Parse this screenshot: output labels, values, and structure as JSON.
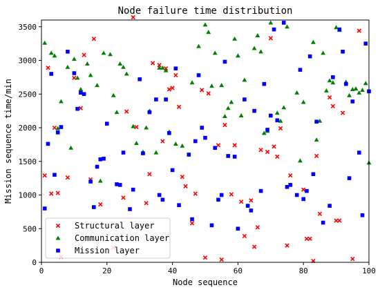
{
  "chart_data": {
    "type": "scatter",
    "title": "Node failure time distribution",
    "xlabel": "Node sequence",
    "ylabel": "Mission sequence time/min",
    "xlim": [
      0,
      100
    ],
    "ylim": [
      0,
      3600
    ],
    "xticks": [
      0,
      20,
      40,
      60,
      80,
      100
    ],
    "yticks": [
      0,
      500,
      1000,
      1500,
      2000,
      2500,
      3000,
      3500
    ],
    "grid": false,
    "legend_position": "lower-left",
    "series": [
      {
        "name": "Structural layer",
        "marker": "x",
        "color": "#ff0000",
        "points": [
          [
            1,
            1290
          ],
          [
            2,
            2890
          ],
          [
            3,
            1020
          ],
          [
            4,
            2000
          ],
          [
            5,
            1030
          ],
          [
            6,
            80
          ],
          [
            8,
            1260
          ],
          [
            10,
            2740
          ],
          [
            12,
            2290
          ],
          [
            13,
            3080
          ],
          [
            15,
            1230
          ],
          [
            16,
            3320
          ],
          [
            18,
            860
          ],
          [
            22,
            220
          ],
          [
            25,
            960
          ],
          [
            26,
            2240
          ],
          [
            28,
            3640
          ],
          [
            29,
            2010
          ],
          [
            32,
            880
          ],
          [
            33,
            1310
          ],
          [
            34,
            2960
          ],
          [
            36,
            2930
          ],
          [
            37,
            1800
          ],
          [
            38,
            2880
          ],
          [
            39,
            2570
          ],
          [
            40,
            2590
          ],
          [
            41,
            2780
          ],
          [
            42,
            2310
          ],
          [
            43,
            1270
          ],
          [
            44,
            1130
          ],
          [
            46,
            580
          ],
          [
            47,
            1020
          ],
          [
            49,
            2560
          ],
          [
            50,
            70
          ],
          [
            51,
            2510
          ],
          [
            54,
            1740
          ],
          [
            55,
            40
          ],
          [
            56,
            2040
          ],
          [
            58,
            1010
          ],
          [
            59,
            1740
          ],
          [
            61,
            900
          ],
          [
            62,
            390
          ],
          [
            64,
            920
          ],
          [
            65,
            230
          ],
          [
            66,
            520
          ],
          [
            67,
            1670
          ],
          [
            69,
            1640
          ],
          [
            70,
            3330
          ],
          [
            71,
            1720
          ],
          [
            72,
            1570
          ],
          [
            73,
            1990
          ],
          [
            75,
            250
          ],
          [
            76,
            1290
          ],
          [
            80,
            1080
          ],
          [
            81,
            350
          ],
          [
            82,
            350
          ],
          [
            83,
            20
          ],
          [
            84,
            1580
          ],
          [
            85,
            720
          ],
          [
            88,
            2450
          ],
          [
            89,
            2320
          ],
          [
            90,
            620
          ],
          [
            91,
            620
          ],
          [
            92,
            2220
          ],
          [
            95,
            50
          ],
          [
            97,
            3440
          ]
        ]
      },
      {
        "name": "Communication layer",
        "marker": "triangle",
        "color": "#008000",
        "points": [
          [
            1,
            3260
          ],
          [
            3,
            3110
          ],
          [
            4,
            3070
          ],
          [
            5,
            1990
          ],
          [
            6,
            2390
          ],
          [
            8,
            2900
          ],
          [
            9,
            1700
          ],
          [
            10,
            3020
          ],
          [
            11,
            2740
          ],
          [
            12,
            2570
          ],
          [
            14,
            2950
          ],
          [
            15,
            2780
          ],
          [
            17,
            2630
          ],
          [
            18,
            1210
          ],
          [
            19,
            3110
          ],
          [
            21,
            3090
          ],
          [
            22,
            2480
          ],
          [
            23,
            2230
          ],
          [
            24,
            2950
          ],
          [
            25,
            2900
          ],
          [
            26,
            2800
          ],
          [
            28,
            2020
          ],
          [
            29,
            1770
          ],
          [
            31,
            1640
          ],
          [
            32,
            2000
          ],
          [
            33,
            2250
          ],
          [
            35,
            1630
          ],
          [
            36,
            2890
          ],
          [
            37,
            2890
          ],
          [
            38,
            2850
          ],
          [
            39,
            1940
          ],
          [
            41,
            1760
          ],
          [
            43,
            1730
          ],
          [
            46,
            2670
          ],
          [
            48,
            3210
          ],
          [
            50,
            3530
          ],
          [
            51,
            3420
          ],
          [
            52,
            2620
          ],
          [
            53,
            3110
          ],
          [
            55,
            2630
          ],
          [
            56,
            2170
          ],
          [
            57,
            2290
          ],
          [
            58,
            2380
          ],
          [
            59,
            3320
          ],
          [
            60,
            3070
          ],
          [
            61,
            2180
          ],
          [
            62,
            2710
          ],
          [
            65,
            3180
          ],
          [
            66,
            3370
          ],
          [
            67,
            3130
          ],
          [
            68,
            1920
          ],
          [
            69,
            1950
          ],
          [
            70,
            3560
          ],
          [
            72,
            2220
          ],
          [
            73,
            2100
          ],
          [
            74,
            2300
          ],
          [
            75,
            3500
          ],
          [
            78,
            2520
          ],
          [
            79,
            1510
          ],
          [
            80,
            2380
          ],
          [
            83,
            3270
          ],
          [
            84,
            1820
          ],
          [
            85,
            2100
          ],
          [
            86,
            3110
          ],
          [
            87,
            2550
          ],
          [
            88,
            2700
          ],
          [
            89,
            2670
          ],
          [
            90,
            3490
          ],
          [
            91,
            3450
          ],
          [
            93,
            2680
          ],
          [
            94,
            2480
          ],
          [
            95,
            2570
          ],
          [
            96,
            2580
          ],
          [
            97,
            2520
          ],
          [
            98,
            2560
          ],
          [
            99,
            2660
          ],
          [
            100,
            1480
          ]
        ]
      },
      {
        "name": "Mission layer",
        "marker": "square",
        "color": "#0000ff",
        "points": [
          [
            1,
            800
          ],
          [
            2,
            1760
          ],
          [
            3,
            2800
          ],
          [
            4,
            1300
          ],
          [
            5,
            1930
          ],
          [
            6,
            2010
          ],
          [
            8,
            3130
          ],
          [
            10,
            2810
          ],
          [
            11,
            2280
          ],
          [
            12,
            2520
          ],
          [
            13,
            2500
          ],
          [
            15,
            1200
          ],
          [
            16,
            820
          ],
          [
            17,
            1420
          ],
          [
            18,
            1530
          ],
          [
            19,
            1540
          ],
          [
            20,
            2060
          ],
          [
            23,
            1160
          ],
          [
            24,
            1150
          ],
          [
            25,
            1630
          ],
          [
            27,
            790
          ],
          [
            28,
            1080
          ],
          [
            30,
            2720
          ],
          [
            31,
            1620
          ],
          [
            33,
            2230
          ],
          [
            35,
            2420
          ],
          [
            36,
            1000
          ],
          [
            37,
            930
          ],
          [
            38,
            2420
          ],
          [
            39,
            1920
          ],
          [
            40,
            1370
          ],
          [
            41,
            2880
          ],
          [
            42,
            850
          ],
          [
            45,
            1600
          ],
          [
            46,
            640
          ],
          [
            47,
            1800
          ],
          [
            48,
            2780
          ],
          [
            49,
            2000
          ],
          [
            50,
            1850
          ],
          [
            52,
            550
          ],
          [
            53,
            1700
          ],
          [
            54,
            930
          ],
          [
            55,
            1000
          ],
          [
            56,
            2980
          ],
          [
            57,
            1580
          ],
          [
            59,
            1570
          ],
          [
            60,
            500
          ],
          [
            62,
            2420
          ],
          [
            63,
            840
          ],
          [
            64,
            770
          ],
          [
            65,
            2250
          ],
          [
            67,
            1060
          ],
          [
            68,
            2650
          ],
          [
            69,
            1970
          ],
          [
            70,
            2180
          ],
          [
            71,
            3460
          ],
          [
            72,
            2110
          ],
          [
            74,
            3560
          ],
          [
            75,
            1120
          ],
          [
            76,
            1150
          ],
          [
            78,
            1000
          ],
          [
            79,
            2860
          ],
          [
            80,
            940
          ],
          [
            81,
            1060
          ],
          [
            82,
            3060
          ],
          [
            83,
            1310
          ],
          [
            84,
            2090
          ],
          [
            86,
            590
          ],
          [
            88,
            840
          ],
          [
            89,
            2750
          ],
          [
            91,
            3460
          ],
          [
            92,
            3130
          ],
          [
            93,
            2650
          ],
          [
            94,
            1250
          ],
          [
            95,
            2390
          ],
          [
            97,
            1630
          ],
          [
            98,
            700
          ],
          [
            99,
            3250
          ],
          [
            100,
            2540
          ]
        ]
      }
    ]
  }
}
